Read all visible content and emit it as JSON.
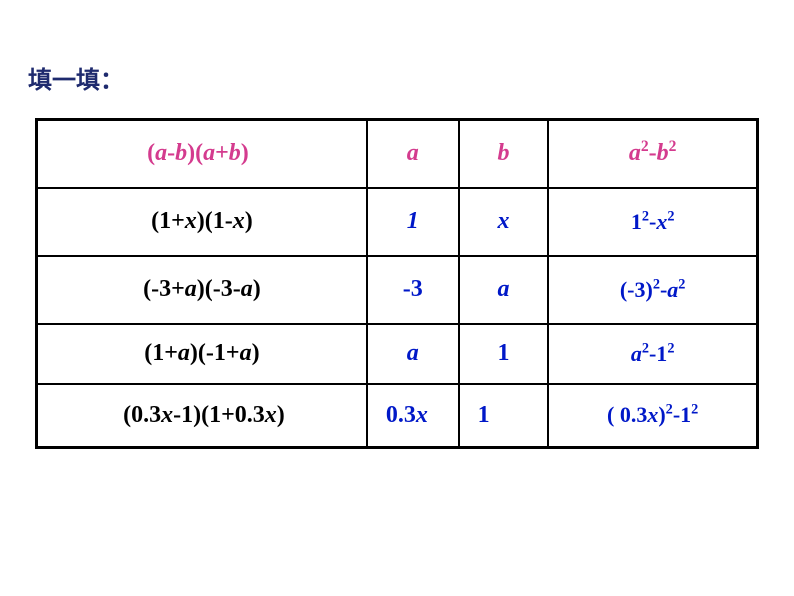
{
  "title": "填一填：",
  "table": {
    "rows": [
      {
        "expr_html": "(<span class='it'>a</span>-<span class='it'>b</span>)(<span class='it'>a</span>+<span class='it'>b</span>)",
        "expr_class": "pink",
        "a_html": "<span class='it'>a</span>",
        "a_class": "pink",
        "b_html": "<span class='it'>b</span>",
        "b_class": "pink",
        "res_html": "<span class='it'>a</span><sup>2</sup>-<span class='it'>b</span><sup>2</sup>",
        "res_class": "pink"
      },
      {
        "expr_html": "(1+<span class='it'>x</span>)(1-<span class='it'>x</span>)",
        "expr_class": "black",
        "a_html": "<span class='it'>1</span>",
        "a_class": "blue",
        "b_html": "<span class='it'>x</span>",
        "b_class": "blue",
        "res_html": "1<sup>2</sup>-<span class='it'>x</span><sup>2</sup>",
        "res_class": "blue"
      },
      {
        "expr_html": "(-3+<span class='it'>a</span>)(-3-<span class='it'>a</span>)",
        "expr_class": "black",
        "a_html": "-3",
        "a_class": "blue",
        "b_html": "<span class='it'>a</span>",
        "b_class": "blue",
        "res_html": "(-3)<sup>2</sup>-<span class='it'>a</span><sup>2</sup>",
        "res_class": "blue"
      },
      {
        "expr_html": "(1+<span class='it'>a</span>)(-1+<span class='it'>a</span>)",
        "expr_class": "black",
        "a_html": "<span class='it'>a</span>",
        "a_class": "blue",
        "b_html": "1",
        "b_class": "blue",
        "res_html": "<span class='it'>a</span><sup>2</sup>-1<sup>2</sup>",
        "res_class": "blue"
      },
      {
        "expr_html": "(0.3<span class='it'>x</span>-1)(1+0.3<span class='it'>x</span>)",
        "expr_class": "black",
        "a_html": "0.3<span class='it'>x</span>",
        "a_class": "blue",
        "b_html": "1",
        "b_class": "blue",
        "res_html": "( 0.3<span class='it'>x</span>)<sup>2</sup>-1<sup>2</sup>",
        "res_class": "blue"
      }
    ]
  },
  "style": {
    "title_color": "#1e2a6e",
    "pink": "#d43b8e",
    "blue": "#0018c8",
    "black": "#000000",
    "border_color": "#000000",
    "background": "#ffffff",
    "title_fontsize": 24,
    "cell_fontsize": 24
  }
}
